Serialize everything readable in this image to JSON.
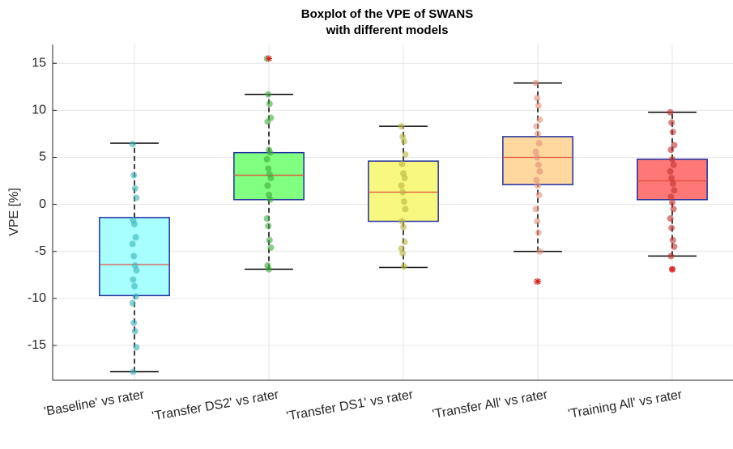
{
  "chart_data": {
    "type": "boxplot",
    "title": [
      "Boxplot of the VPE of SWANS",
      "with different models"
    ],
    "ylabel": "VPE [%]",
    "categories": [
      "'Baseline' vs rater",
      "'Transfer DS2' vs rater",
      "'Transfer DS1' vs rater",
      "'Transfer All' vs rater",
      "'Training All' vs rater"
    ],
    "ylim": [
      -18.7,
      17
    ],
    "yticks": [
      -15,
      -10,
      -5,
      0,
      5,
      10,
      15
    ],
    "grid": true,
    "edge_color": "#1f2f9f",
    "median_color": "#e0503a",
    "outlier_color": "#e02020",
    "boxes": [
      {
        "whisker_low": -17.8,
        "q1": -9.7,
        "median": -6.4,
        "q3": -1.4,
        "whisker_high": 6.5,
        "outliers": [],
        "color": "#a8ffff",
        "point_color": "#3bb3b8",
        "points": [
          6.4,
          3.1,
          1.7,
          0.7,
          -1.7,
          -2.1,
          -3.5,
          -4.2,
          -5.5,
          -6.5,
          -7.0,
          -8.0,
          -8.7,
          -9.8,
          -10.5,
          -12.6,
          -13.5,
          -15.2,
          -17.8
        ]
      },
      {
        "whisker_low": -6.9,
        "q1": 0.5,
        "median": 3.1,
        "q3": 5.5,
        "whisker_high": 11.7,
        "outliers": [
          15.5
        ],
        "color": "#80ff80",
        "point_color": "#3caa3c",
        "points": [
          15.5,
          11.7,
          10.7,
          9.2,
          8.8,
          5.8,
          5.5,
          4.8,
          3.8,
          3.2,
          2.8,
          2.0,
          1.0,
          0.5,
          -1.5,
          -2.3,
          -3.8,
          -4.6,
          -6.5,
          -6.9
        ]
      },
      {
        "whisker_low": -6.7,
        "q1": -1.8,
        "median": 1.3,
        "q3": 4.6,
        "whisker_high": 8.3,
        "outliers": [],
        "color": "#f8f880",
        "point_color": "#b8b440",
        "points": [
          8.3,
          7.2,
          6.7,
          5.3,
          4.3,
          3.3,
          2.8,
          2.0,
          1.3,
          0.3,
          -0.5,
          -1.8,
          -2.4,
          -4.0,
          -4.7,
          -5.2,
          -6.6
        ]
      },
      {
        "whisker_low": -5.0,
        "q1": 2.1,
        "median": 5.0,
        "q3": 7.2,
        "whisker_high": 12.9,
        "outliers": [
          -8.2
        ],
        "color": "#ffd8a0",
        "point_color": "#e0907a",
        "points": [
          12.9,
          11.3,
          10.5,
          9.0,
          8.3,
          7.5,
          6.5,
          5.6,
          5.0,
          4.2,
          3.5,
          2.6,
          2.0,
          1.0,
          -0.5,
          -1.8,
          -3.0,
          -5.0,
          -8.2
        ]
      },
      {
        "whisker_low": -5.5,
        "q1": 0.5,
        "median": 2.5,
        "q3": 4.8,
        "whisker_high": 9.8,
        "outliers": [
          -6.9
        ],
        "color": "#ff7878",
        "point_color": "#c03030",
        "points": [
          9.8,
          8.7,
          7.7,
          6.3,
          5.8,
          4.8,
          4.2,
          3.5,
          2.8,
          2.2,
          1.5,
          0.8,
          0.2,
          -0.5,
          -1.5,
          -2.5,
          -3.8,
          -4.5,
          -5.5,
          -6.9
        ]
      }
    ]
  }
}
